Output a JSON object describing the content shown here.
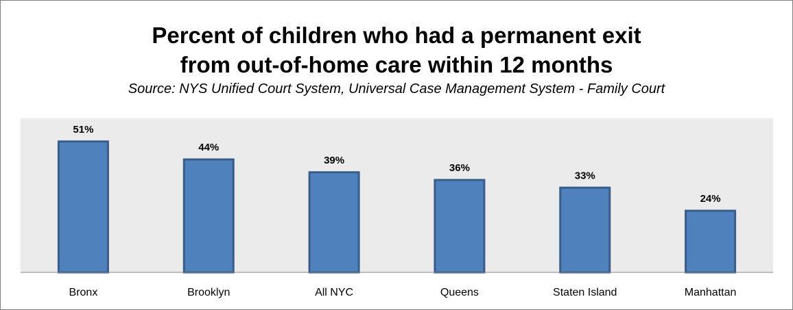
{
  "chart_data": {
    "type": "bar",
    "title_lines": [
      "Percent of children who had a permanent exit",
      "from out-of-home care within 12 months"
    ],
    "subtitle": "Source: NYS Unified Court System, Universal Case Management System - Family Court",
    "categories": [
      "Bronx",
      "Brooklyn",
      "All NYC",
      "Queens",
      "Staten Island",
      "Manhattan"
    ],
    "values": [
      51,
      44,
      39,
      36,
      33,
      24
    ],
    "value_labels": [
      "51%",
      "44%",
      "39%",
      "36%",
      "33%",
      "24%"
    ],
    "ylim": [
      0,
      60
    ],
    "grid": false,
    "legend": "none",
    "colors": {
      "bar_fill": "#4f81bd",
      "bar_stroke": "#385d8a",
      "plot_background": "#ebebeb",
      "axis_line": "#868686"
    }
  }
}
